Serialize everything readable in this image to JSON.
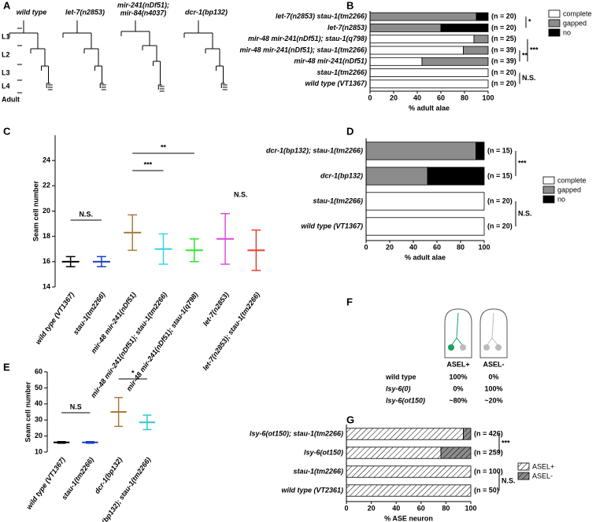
{
  "panel_a": {
    "label": "A",
    "strains": [
      {
        "lines": [
          "wild type"
        ]
      },
      {
        "lines": [
          "let-7(n2853)"
        ]
      },
      {
        "lines": [
          "mir-48",
          "mir-241(nDf51);",
          "mir-84(n4037)"
        ]
      },
      {
        "lines": [
          "dcr-1(bp132)"
        ]
      }
    ],
    "stages": [
      "L1",
      "L2",
      "L3",
      "L4",
      "Adult"
    ]
  },
  "panel_f": {
    "label": "F",
    "phenotypes": [
      "ASEL+",
      "ASEL-"
    ],
    "rows": [
      {
        "genotype": "wild type",
        "values": [
          "100%",
          "0%"
        ]
      },
      {
        "genotype": "lsy-6(0)",
        "values": [
          "0%",
          "100%"
        ]
      },
      {
        "genotype": "lsy-6(ot150)",
        "values": [
          "~80%",
          "~20%"
        ]
      }
    ]
  },
  "chart_data": [
    {
      "panel_label": "B",
      "type": "bar",
      "orientation": "horizontal",
      "stacked": true,
      "categories": [
        "let-7(n2853) stau-1(tm2266)",
        "let-7(n2853)",
        "mir-48 mir-241(nDf51); stau-1(q798)",
        "mir-48 mir-241(nDf51); stau-1(tm2266)",
        "mir-48 mir-241(nDf51)",
        "stau-1(tm2266)",
        "wild type (VT1367)"
      ],
      "series": [
        {
          "name": "complete",
          "color": "#ffffff",
          "values": [
            0,
            0,
            88,
            79,
            44,
            100,
            100
          ]
        },
        {
          "name": "gapped",
          "color": "#8c8c8c",
          "values": [
            90,
            60,
            12,
            21,
            56,
            0,
            0
          ]
        },
        {
          "name": "no",
          "color": "#000000",
          "values": [
            10,
            40,
            0,
            0,
            0,
            0,
            0
          ]
        }
      ],
      "n_labels": [
        "(n = 20)",
        "(n = 20)",
        "(n = 25)",
        "(n = 39)",
        "(n = 39)",
        "(n = 20)",
        "(n = 20)"
      ],
      "xlim": [
        0,
        100
      ],
      "xticks": [
        0,
        20,
        40,
        60,
        80,
        100
      ],
      "xlabel": "% adult alae",
      "annotations": [
        "*",
        "**",
        "***",
        "N.S."
      ],
      "legend": "right"
    },
    {
      "panel_label": "C",
      "type": "errorbar",
      "categories": [
        "wild type (VT1367)",
        "stau-1(tm2266)",
        "mir-48 mir-241(nDf51)",
        "mir-48 mir-241(nDf51); stau-1(tm2266)",
        "mir-48 mir-241(nDf51); stau-1(q798)",
        "let-7(n2853)",
        "let-7(n2853); stau-1(tm2266)"
      ],
      "values": [
        16,
        16,
        18.3,
        17,
        16.9,
        17.8,
        16.9
      ],
      "errors": [
        0.4,
        0.4,
        1.4,
        1.2,
        0.9,
        2,
        1.6
      ],
      "colors": [
        "#000000",
        "#1a3fc4",
        "#a67c3c",
        "#36d4ea",
        "#2fe02f",
        "#e04ce0",
        "#e8402e"
      ],
      "ylim": [
        14,
        26
      ],
      "yticks": [
        14,
        16,
        18,
        20,
        22,
        24
      ],
      "ylabel": "Seam cell number",
      "annotations": [
        "N.S.",
        "***",
        "**",
        "N.S."
      ]
    },
    {
      "panel_label": "D",
      "type": "bar",
      "orientation": "horizontal",
      "stacked": true,
      "categories": [
        "dcr-1(bp132); stau-1(tm2266)",
        "dcr-1(bp132)",
        "stau-1(tm2266)",
        "wild type (VT1367)"
      ],
      "series": [
        {
          "name": "complete",
          "color": "#ffffff",
          "values": [
            0,
            0,
            100,
            100
          ]
        },
        {
          "name": "gapped",
          "color": "#8c8c8c",
          "values": [
            93,
            52,
            0,
            0
          ]
        },
        {
          "name": "no",
          "color": "#000000",
          "values": [
            7,
            48,
            0,
            0
          ]
        }
      ],
      "n_labels": [
        "(n = 15)",
        "(n = 15)",
        "(n = 20)",
        "(n = 20)"
      ],
      "xlim": [
        0,
        100
      ],
      "xticks": [
        0,
        20,
        40,
        60,
        80,
        100
      ],
      "xlabel": "% adult alae",
      "annotations": [
        "***",
        "N.S."
      ],
      "legend": "right"
    },
    {
      "panel_label": "E",
      "type": "errorbar",
      "categories": [
        "wild type (VT1367)",
        "stau-1(tm2266)",
        "dcr-1(bp132)",
        "dcr-1(bp132); stau-1(tm2266)"
      ],
      "values": [
        16,
        16,
        35,
        28.5
      ],
      "errors": [
        0.5,
        0.5,
        9,
        4.5
      ],
      "colors": [
        "#000000",
        "#1a3fc4",
        "#a67c3c",
        "#2ec8c8"
      ],
      "ylim": [
        10,
        60
      ],
      "yticks": [
        10,
        20,
        30,
        40,
        50,
        60
      ],
      "ylabel": "Seam cell number",
      "annotations": [
        "N.S",
        "*"
      ]
    },
    {
      "panel_label": "G",
      "type": "bar",
      "orientation": "horizontal",
      "stacked": true,
      "pattern": "hatch",
      "categories": [
        "lsy-6(ot150); stau-1(tm2266)",
        "lsy-6(ot150)",
        "stau-1(tm2266)",
        "wild type (VT2361)"
      ],
      "series": [
        {
          "name": "ASEL+",
          "color": "#ffffff",
          "values": [
            94,
            76,
            100,
            100
          ]
        },
        {
          "name": "ASEL-",
          "color": "#8c8c8c",
          "values": [
            6,
            24,
            0,
            0
          ]
        }
      ],
      "n_labels": [
        "(n = 426)",
        "(n = 259)",
        "(n = 100)",
        "(n = 50)"
      ],
      "xlim": [
        0,
        100
      ],
      "xticks": [
        0,
        20,
        40,
        60,
        80,
        100
      ],
      "xlabel": "% ASE neuron",
      "annotations": [
        "***",
        "N.S."
      ],
      "legend": "right"
    }
  ]
}
